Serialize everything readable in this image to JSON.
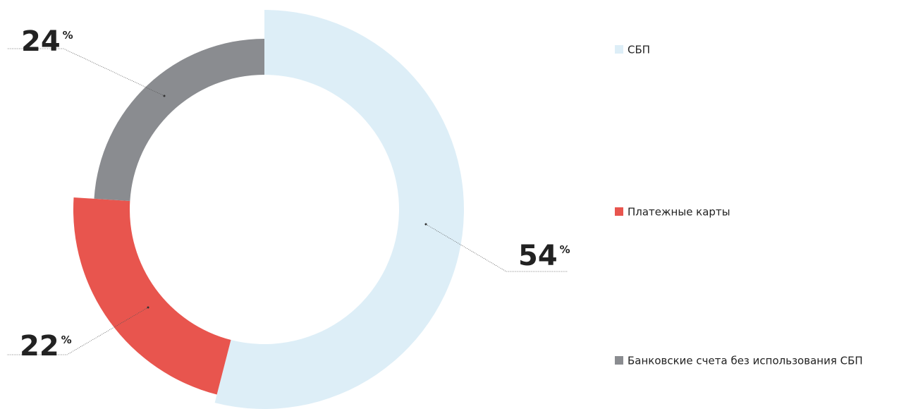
{
  "chart_data": {
    "type": "donut",
    "categories": [
      "СБП",
      "Платежные карты",
      "Банковские счета без использования СБП"
    ],
    "values": [
      54,
      22,
      24
    ],
    "value_labels": [
      "54%",
      "22%",
      "24%"
    ],
    "colors": [
      "#ddeef7",
      "#e8554e",
      "#8a8c90"
    ],
    "legend": "right"
  }
}
